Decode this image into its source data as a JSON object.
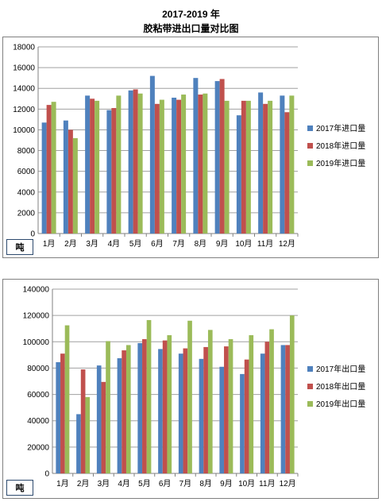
{
  "title_line1": "2017-2019 年",
  "title_line2": "胶粘带进出口量对比图",
  "colors": {
    "s2017": "#4f81bd",
    "s2018": "#c0504d",
    "s2019": "#9bbb59",
    "grid": "#a0a0a0"
  },
  "chart_data": [
    {
      "type": "bar",
      "unit": "吨",
      "categories": [
        "1月",
        "2月",
        "3月",
        "4月",
        "5月",
        "6月",
        "7月",
        "8月",
        "9月",
        "10月",
        "11月",
        "12月"
      ],
      "ylim": [
        0,
        18000
      ],
      "yticks": [
        0,
        2000,
        4000,
        6000,
        8000,
        10000,
        12000,
        14000,
        16000,
        18000
      ],
      "grid": true,
      "legend_position": "right",
      "series": [
        {
          "name": "2017年进口量",
          "values": [
            10700,
            10900,
            13300,
            11900,
            13800,
            15200,
            13100,
            15000,
            14700,
            11400,
            13600,
            13300
          ]
        },
        {
          "name": "2018年进口量",
          "values": [
            12400,
            10000,
            13000,
            12100,
            13900,
            12500,
            12900,
            13400,
            14900,
            12800,
            12500,
            11700
          ]
        },
        {
          "name": "2019年进口量",
          "values": [
            12700,
            9200,
            12800,
            13300,
            13500,
            12900,
            13400,
            13500,
            12800,
            12800,
            12800,
            13300
          ]
        }
      ]
    },
    {
      "type": "bar",
      "unit": "吨",
      "categories": [
        "1月",
        "2月",
        "3月",
        "4月",
        "5月",
        "6月",
        "7月",
        "8月",
        "9月",
        "10月",
        "11月",
        "12月"
      ],
      "ylim": [
        0,
        140000
      ],
      "yticks": [
        0,
        20000,
        40000,
        60000,
        80000,
        100000,
        120000,
        140000
      ],
      "grid": true,
      "legend_position": "right",
      "series": [
        {
          "name": "2017年出口量",
          "values": [
            84500,
            45000,
            82000,
            87500,
            99000,
            94500,
            91000,
            87000,
            81000,
            75500,
            91000,
            97500
          ]
        },
        {
          "name": "2018年出口量",
          "values": [
            91000,
            79000,
            69500,
            93500,
            102000,
            101000,
            95000,
            96000,
            96500,
            86500,
            100000,
            97500
          ]
        },
        {
          "name": "2019年出口量",
          "values": [
            112500,
            58000,
            100500,
            97500,
            116500,
            105000,
            116000,
            109000,
            102000,
            105000,
            109500,
            120000
          ]
        }
      ]
    }
  ]
}
